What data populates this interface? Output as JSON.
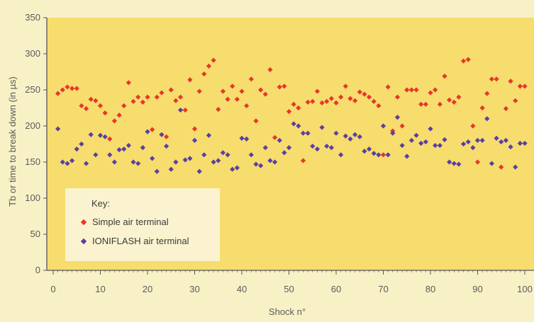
{
  "chart_data": {
    "type": "scatter",
    "xlabel": "Shock n°",
    "ylabel": "Tb or time to break down (in µs)",
    "xlim": [
      0,
      100
    ],
    "ylim": [
      0,
      350
    ],
    "x_ticks": [
      0,
      10,
      20,
      30,
      40,
      50,
      60,
      70,
      80,
      90,
      100
    ],
    "y_ticks": [
      0,
      50,
      100,
      150,
      200,
      250,
      300,
      350
    ],
    "grid": false,
    "legend": {
      "title": "Key:",
      "position": "bottom-left"
    },
    "colors": {
      "plot_background": "#f6dd6e",
      "page_background": "#f8f1c6",
      "legend_background": "#fbf3cf",
      "axis": "#555555"
    },
    "series": [
      {
        "name": "Simple air terminal",
        "marker": "diamond",
        "color": "#e8362a",
        "x": [
          1,
          2,
          3,
          4,
          5,
          6,
          7,
          8,
          9,
          10,
          11,
          12,
          13,
          14,
          15,
          16,
          17,
          18,
          19,
          20,
          21,
          22,
          23,
          24,
          25,
          26,
          27,
          28,
          29,
          30,
          31,
          32,
          33,
          34,
          35,
          36,
          37,
          38,
          39,
          40,
          41,
          42,
          43,
          44,
          45,
          46,
          47,
          48,
          49,
          50,
          51,
          52,
          53,
          54,
          55,
          56,
          57,
          58,
          59,
          60,
          61,
          62,
          63,
          64,
          65,
          66,
          67,
          68,
          69,
          70,
          71,
          72,
          73,
          74,
          75,
          76,
          77,
          78,
          79,
          80,
          81,
          82,
          83,
          84,
          85,
          86,
          87,
          88,
          89,
          90,
          91,
          92,
          93,
          94,
          95,
          96,
          97,
          98,
          99
        ],
        "y": [
          245,
          250,
          254,
          252,
          252,
          228,
          224,
          237,
          235,
          228,
          218,
          182,
          207,
          215,
          228,
          260,
          234,
          240,
          233,
          240,
          195,
          240,
          246,
          185,
          250,
          235,
          240,
          222,
          264,
          196,
          248,
          272,
          283,
          291,
          223,
          248,
          237,
          255,
          237,
          248,
          228,
          265,
          207,
          250,
          244,
          278,
          184,
          254,
          255,
          220,
          230,
          225,
          152,
          233,
          234,
          248,
          232,
          234,
          238,
          232,
          240,
          255,
          238,
          235,
          247,
          244,
          240,
          234,
          228,
          160,
          254,
          193,
          240,
          200,
          250,
          250,
          250,
          230,
          230,
          246,
          250,
          230,
          269,
          236,
          233,
          240,
          290,
          292,
          200,
          150,
          225,
          245,
          265,
          265,
          143,
          224,
          262,
          235,
          255
        ],
        "x_extra": [
          100
        ],
        "y_extra": [
          255
        ]
      },
      {
        "name": "IONIFLASH air terminal",
        "marker": "diamond",
        "color": "#5b3fa0",
        "x": [
          1,
          2,
          3,
          4,
          5,
          6,
          7,
          8,
          9,
          10,
          11,
          12,
          13,
          14,
          15,
          16,
          17,
          18,
          19,
          20,
          21,
          22,
          23,
          24,
          25,
          26,
          27,
          28,
          29,
          30,
          31,
          32,
          33,
          34,
          35,
          36,
          37,
          38,
          39,
          40,
          41,
          42,
          43,
          44,
          45,
          46,
          47,
          48,
          49,
          50,
          51,
          52,
          53,
          54,
          55,
          56,
          57,
          58,
          59,
          60,
          61,
          62,
          63,
          64,
          65,
          66,
          67,
          68,
          69,
          70,
          71,
          72,
          73,
          74,
          75,
          76,
          77,
          78,
          79,
          80,
          81,
          82,
          83,
          84,
          85,
          86,
          87,
          88,
          89,
          90,
          91,
          92,
          93,
          94,
          95,
          96,
          97,
          98,
          99,
          100
        ],
        "y": [
          196,
          150,
          148,
          152,
          168,
          175,
          148,
          188,
          160,
          187,
          185,
          160,
          150,
          167,
          168,
          173,
          150,
          148,
          170,
          192,
          155,
          137,
          188,
          172,
          140,
          150,
          222,
          153,
          155,
          180,
          137,
          160,
          187,
          150,
          152,
          163,
          160,
          140,
          142,
          183,
          182,
          160,
          147,
          145,
          170,
          152,
          150,
          180,
          163,
          170,
          203,
          200,
          190,
          190,
          172,
          168,
          198,
          172,
          170,
          190,
          160,
          186,
          182,
          188,
          185,
          165,
          168,
          162,
          160,
          200,
          160,
          190,
          212,
          173,
          158,
          180,
          187,
          176,
          178,
          196,
          173,
          173,
          181,
          150,
          148,
          147,
          175,
          178,
          170,
          180,
          180,
          210,
          148,
          183,
          178,
          180,
          171,
          143,
          176,
          176
        ]
      }
    ]
  }
}
